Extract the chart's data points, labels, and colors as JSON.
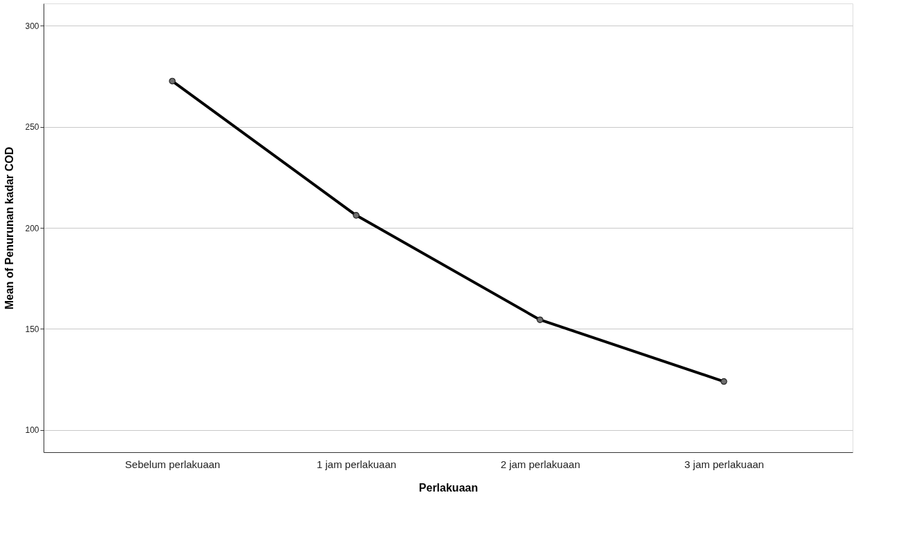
{
  "chart_data": {
    "type": "line",
    "xlabel": "Perlakuaan",
    "ylabel": "Mean of Penurunan kadar COD",
    "categories": [
      "Sebelum perlakuaan",
      "1 jam perlakuaan",
      "2 jam perlakuaan",
      "3 jam perlakuaan"
    ],
    "series": [
      {
        "color": "#000000",
        "values": [
          272.6,
          206.2,
          154.5,
          124.0
        ]
      }
    ],
    "ylim": [
      89,
      311
    ],
    "yticks": [
      100,
      150,
      200,
      250,
      300
    ],
    "grid": "y",
    "marker": "circle",
    "line_style": "solid",
    "legend": false
  }
}
